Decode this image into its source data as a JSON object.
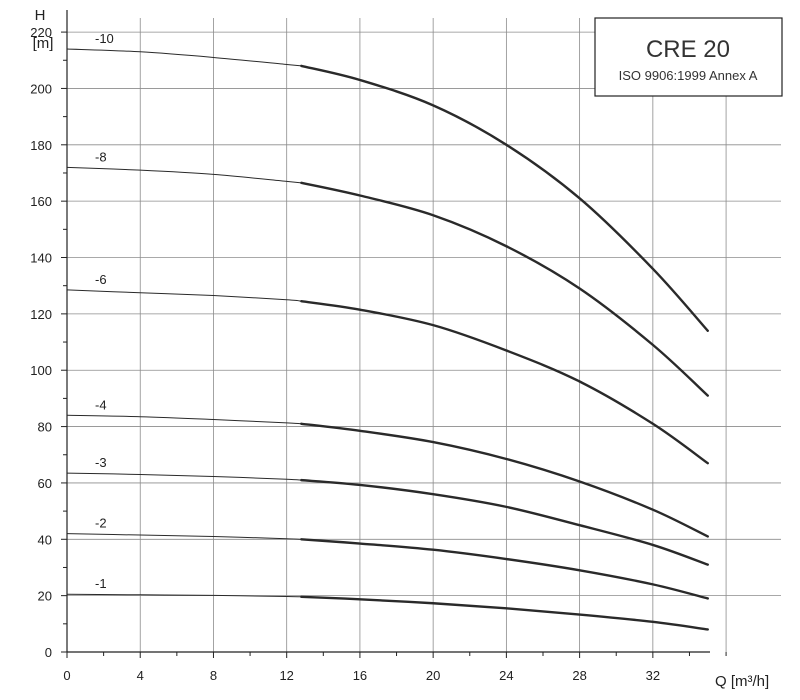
{
  "chart_data": {
    "type": "line",
    "title": "CRE 20",
    "subtitle": "ISO 9906:1999 Annex A",
    "ylabel_top": "H",
    "ylabel_unit": "[m]",
    "xlabel": "Q [m³/h]",
    "xlim": [
      0,
      39
    ],
    "ylim": [
      0,
      225
    ],
    "xticks": [
      0,
      4,
      8,
      12,
      16,
      20,
      24,
      28,
      32
    ],
    "yticks": [
      0,
      20,
      40,
      60,
      80,
      100,
      120,
      140,
      160,
      180,
      200,
      220
    ],
    "grid": true,
    "thin_until_q": 12.8,
    "series": [
      {
        "name": "-10",
        "x": [
          0,
          4,
          8,
          12,
          12.8,
          16,
          20,
          24,
          28,
          32,
          35
        ],
        "y": [
          214,
          213,
          211,
          208.5,
          208,
          203,
          194,
          180,
          161,
          136,
          114
        ]
      },
      {
        "name": "-8",
        "x": [
          0,
          4,
          8,
          12,
          12.8,
          16,
          20,
          24,
          28,
          32,
          35
        ],
        "y": [
          172,
          171,
          169.5,
          167,
          166.5,
          162,
          155,
          144,
          129,
          109,
          91
        ]
      },
      {
        "name": "-6",
        "x": [
          0,
          4,
          8,
          12,
          12.8,
          16,
          20,
          24,
          28,
          32,
          35
        ],
        "y": [
          128.5,
          127.5,
          126.5,
          125,
          124.5,
          121.5,
          116,
          107,
          96,
          81,
          67
        ]
      },
      {
        "name": "-4",
        "x": [
          0,
          4,
          8,
          12,
          12.8,
          16,
          20,
          24,
          28,
          32,
          35
        ],
        "y": [
          84,
          83.5,
          82.5,
          81.3,
          81,
          78.5,
          74.5,
          68.5,
          60.5,
          50.5,
          41
        ]
      },
      {
        "name": "-3",
        "x": [
          0,
          4,
          8,
          12,
          12.8,
          16,
          20,
          24,
          28,
          32,
          35
        ],
        "y": [
          63.5,
          63,
          62.3,
          61.3,
          61,
          59.3,
          56,
          51.5,
          45,
          38,
          31
        ]
      },
      {
        "name": "-2",
        "x": [
          0,
          4,
          8,
          12,
          12.8,
          16,
          20,
          24,
          28,
          32,
          35
        ],
        "y": [
          42,
          41.5,
          41,
          40.2,
          40,
          38.5,
          36.3,
          33,
          29,
          24,
          19
        ]
      },
      {
        "name": "-1",
        "x": [
          0,
          4,
          8,
          12,
          12.8,
          16,
          20,
          24,
          28,
          32,
          35
        ],
        "y": [
          20.5,
          20.3,
          20.1,
          19.7,
          19.6,
          18.7,
          17.3,
          15.5,
          13.3,
          10.7,
          8
        ]
      }
    ]
  }
}
